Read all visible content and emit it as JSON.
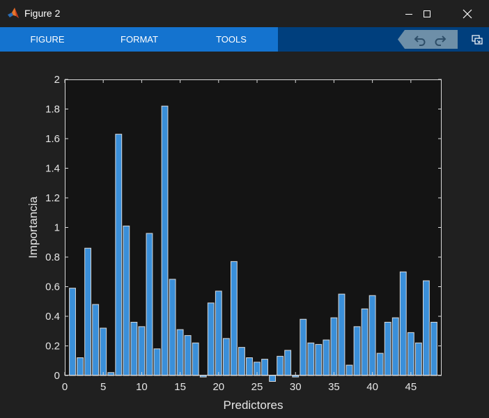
{
  "window": {
    "title": "Figure 2",
    "app_icon": "matlab-icon",
    "controls": [
      "minimize-icon",
      "maximize-icon",
      "close-icon"
    ]
  },
  "toolstrip": {
    "tabs": [
      {
        "label": "FIGURE"
      },
      {
        "label": "FORMAT"
      },
      {
        "label": "TOOLS"
      }
    ],
    "quick_access": [
      "undo-icon",
      "redo-icon"
    ],
    "undock_icon": "undock-icon",
    "colors": {
      "tab_bar": "#1473cf",
      "strip": "#003f7d"
    }
  },
  "chart_data": {
    "type": "bar",
    "xlabel": "Predictores",
    "ylabel": "Importancia",
    "xlim": [
      0,
      49
    ],
    "ylim": [
      0,
      2
    ],
    "xticks": [
      0,
      5,
      10,
      15,
      20,
      25,
      30,
      35,
      40,
      45
    ],
    "yticks": [
      0,
      0.2,
      0.4,
      0.6,
      0.8,
      1,
      1.2,
      1.4,
      1.6,
      1.8,
      2
    ],
    "ytick_labels": [
      "0",
      "0.2",
      "0.4",
      "0.6",
      "0.8",
      "1",
      "1.2",
      "1.4",
      "1.6",
      "1.8",
      "2"
    ],
    "grid": false,
    "bar_color": "#3a8fd9",
    "bar_edge_color": "#d9d9d9",
    "axes_background": "#141414",
    "series": [
      {
        "x": [
          1,
          2,
          3,
          4,
          5,
          6,
          7,
          8,
          9,
          10,
          11,
          12,
          13,
          14,
          15,
          16,
          17,
          18,
          19,
          20,
          21,
          22,
          23,
          24,
          25,
          26,
          27,
          28,
          29,
          30,
          31,
          32,
          33,
          34,
          35,
          36,
          37,
          38,
          39,
          40,
          41,
          42,
          43,
          44,
          45,
          46,
          47,
          48
        ],
        "values": [
          0.59,
          0.12,
          0.86,
          0.48,
          0.32,
          0.02,
          1.63,
          1.01,
          0.36,
          0.33,
          0.96,
          0.18,
          1.82,
          0.65,
          0.31,
          0.27,
          0.22,
          -0.01,
          0.49,
          0.57,
          0.25,
          0.77,
          0.19,
          0.12,
          0.09,
          0.11,
          -0.04,
          0.13,
          0.17,
          -0.01,
          0.38,
          0.22,
          0.21,
          0.24,
          0.39,
          0.55,
          0.07,
          0.33,
          0.45,
          0.54,
          0.15,
          0.36,
          0.39,
          0.7,
          0.29,
          0.22,
          0.64,
          0.36
        ]
      }
    ]
  }
}
